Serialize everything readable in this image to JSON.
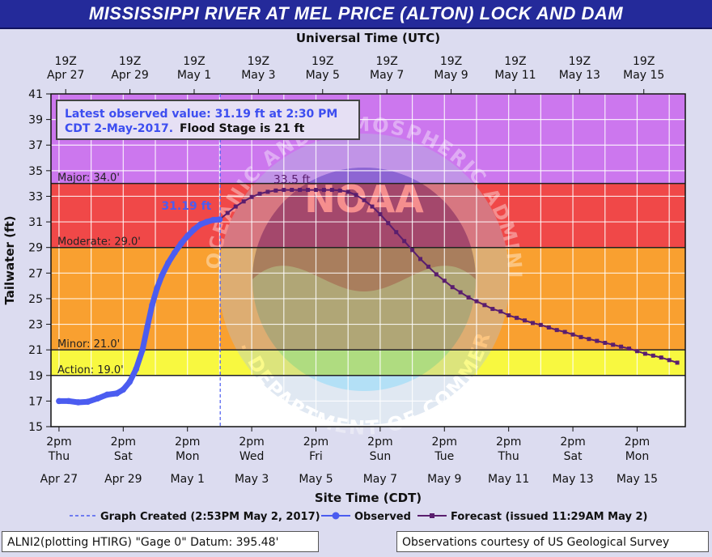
{
  "title": "MISSISSIPPI RIVER AT MEL PRICE (ALTON) LOCK AND DAM",
  "footer": {
    "left": "ALNI2(plotting HTIRG) \"Gage 0\" Datum: 395.48'",
    "right": "Observations courtesy of US Geological Survey"
  },
  "chart_data": {
    "type": "line",
    "top_axis_title": "Universal Time (UTC)",
    "xlabel": "Site Time (CDT)",
    "ylabel": "Tailwater (ft)",
    "ylim": [
      15,
      41
    ],
    "yticks": [
      15,
      17,
      19,
      21,
      23,
      25,
      27,
      29,
      31,
      33,
      35,
      37,
      39,
      41
    ],
    "xlim": [
      "2017-04-27 08:00",
      "2017-05-16 20:00"
    ],
    "grid": true,
    "top_ticks": [
      {
        "line1": "19Z",
        "line2": "Apr 27",
        "day": 0
      },
      {
        "line1": "19Z",
        "line2": "Apr 29",
        "day": 2
      },
      {
        "line1": "19Z",
        "line2": "May  1",
        "day": 4
      },
      {
        "line1": "19Z",
        "line2": "May  3",
        "day": 6
      },
      {
        "line1": "19Z",
        "line2": "May  5",
        "day": 8
      },
      {
        "line1": "19Z",
        "line2": "May  7",
        "day": 10
      },
      {
        "line1": "19Z",
        "line2": "May  9",
        "day": 12
      },
      {
        "line1": "19Z",
        "line2": "May 11",
        "day": 14
      },
      {
        "line1": "19Z",
        "line2": "May 13",
        "day": 16
      },
      {
        "line1": "19Z",
        "line2": "May 15",
        "day": 18
      }
    ],
    "bottom_ticks": [
      {
        "time": "2pm",
        "weekday": "Thu",
        "date": "Apr 27",
        "day": 0
      },
      {
        "time": "2pm",
        "weekday": "Sat",
        "date": "Apr 29",
        "day": 2
      },
      {
        "time": "2pm",
        "weekday": "Mon",
        "date": "May 1",
        "day": 4
      },
      {
        "time": "2pm",
        "weekday": "Wed",
        "date": "May 3",
        "day": 6
      },
      {
        "time": "2pm",
        "weekday": "Fri",
        "date": "May 5",
        "day": 8
      },
      {
        "time": "2pm",
        "weekday": "Sun",
        "date": "May 7",
        "day": 10
      },
      {
        "time": "2pm",
        "weekday": "Tue",
        "date": "May 9",
        "day": 12
      },
      {
        "time": "2pm",
        "weekday": "Thu",
        "date": "May 11",
        "day": 14
      },
      {
        "time": "2pm",
        "weekday": "Sat",
        "date": "May 13",
        "day": 16
      },
      {
        "time": "2pm",
        "weekday": "Mon",
        "date": "May 15",
        "day": 18
      }
    ],
    "bands": [
      {
        "name": "major",
        "from": 34,
        "to": 41,
        "color": "#cc77ee"
      },
      {
        "name": "moderate",
        "from": 29,
        "to": 34,
        "color": "#f04848"
      },
      {
        "name": "minor",
        "from": 21,
        "to": 29,
        "color": "#f9a030"
      },
      {
        "name": "action",
        "from": 19,
        "to": 21,
        "color": "#f8f840"
      },
      {
        "name": "none",
        "from": 15,
        "to": 19,
        "color": "#ffffff"
      }
    ],
    "thresholds": [
      {
        "label": "Major: 34.0'",
        "value": 34
      },
      {
        "label": "Moderate: 29.0'",
        "value": 29
      },
      {
        "label": "Minor: 21.0'",
        "value": 21
      },
      {
        "label": "Action: 19.0'",
        "value": 19
      }
    ],
    "annotation": {
      "line1": "Latest observed value: 31.19 ft at 2:30 PM",
      "line2": "CDT 2-May-2017.",
      "flood_stage": "Flood Stage is 21 ft"
    },
    "observed_label": "31.19 ft",
    "peak_label": "33.5 ft",
    "created_day": 5.02,
    "series": [
      {
        "name": "Observed",
        "color": "#4b5cf0",
        "points": [
          [
            0.0,
            17.0
          ],
          [
            0.3,
            17.0
          ],
          [
            0.6,
            16.9
          ],
          [
            0.9,
            16.95
          ],
          [
            1.2,
            17.2
          ],
          [
            1.5,
            17.5
          ],
          [
            1.8,
            17.6
          ],
          [
            2.0,
            17.9
          ],
          [
            2.2,
            18.5
          ],
          [
            2.4,
            19.5
          ],
          [
            2.6,
            21.0
          ],
          [
            2.75,
            22.8
          ],
          [
            2.9,
            24.5
          ],
          [
            3.05,
            25.8
          ],
          [
            3.2,
            26.8
          ],
          [
            3.4,
            27.8
          ],
          [
            3.6,
            28.6
          ],
          [
            3.8,
            29.3
          ],
          [
            4.0,
            29.9
          ],
          [
            4.2,
            30.4
          ],
          [
            4.4,
            30.8
          ],
          [
            4.6,
            31.0
          ],
          [
            4.8,
            31.15
          ],
          [
            5.0,
            31.19
          ]
        ]
      },
      {
        "name": "Forecast (issued 11:29AM May 2)",
        "color": "#5a1e6e",
        "points": [
          [
            5.0,
            31.19
          ],
          [
            5.25,
            31.7
          ],
          [
            5.5,
            32.2
          ],
          [
            5.75,
            32.6
          ],
          [
            6.0,
            32.95
          ],
          [
            6.25,
            33.2
          ],
          [
            6.5,
            33.35
          ],
          [
            6.75,
            33.45
          ],
          [
            7.0,
            33.5
          ],
          [
            7.25,
            33.5
          ],
          [
            7.5,
            33.5
          ],
          [
            7.75,
            33.5
          ],
          [
            8.0,
            33.5
          ],
          [
            8.25,
            33.5
          ],
          [
            8.5,
            33.5
          ],
          [
            8.75,
            33.45
          ],
          [
            9.0,
            33.35
          ],
          [
            9.25,
            33.1
          ],
          [
            9.5,
            32.7
          ],
          [
            9.75,
            32.2
          ],
          [
            10.0,
            31.6
          ],
          [
            10.25,
            30.9
          ],
          [
            10.5,
            30.2
          ],
          [
            10.75,
            29.5
          ],
          [
            11.0,
            28.8
          ],
          [
            11.25,
            28.1
          ],
          [
            11.5,
            27.5
          ],
          [
            11.75,
            26.9
          ],
          [
            12.0,
            26.4
          ],
          [
            12.25,
            25.9
          ],
          [
            12.5,
            25.5
          ],
          [
            12.75,
            25.1
          ],
          [
            13.0,
            24.8
          ],
          [
            13.25,
            24.5
          ],
          [
            13.5,
            24.2
          ],
          [
            13.75,
            24.0
          ],
          [
            14.0,
            23.7
          ],
          [
            14.25,
            23.5
          ],
          [
            14.5,
            23.3
          ],
          [
            14.75,
            23.1
          ],
          [
            15.0,
            22.95
          ],
          [
            15.25,
            22.75
          ],
          [
            15.5,
            22.55
          ],
          [
            15.75,
            22.4
          ],
          [
            16.0,
            22.2
          ],
          [
            16.25,
            22.0
          ],
          [
            16.5,
            21.85
          ],
          [
            16.75,
            21.7
          ],
          [
            17.0,
            21.55
          ],
          [
            17.25,
            21.4
          ],
          [
            17.5,
            21.25
          ],
          [
            17.75,
            21.1
          ],
          [
            18.0,
            20.9
          ],
          [
            18.25,
            20.7
          ],
          [
            18.5,
            20.55
          ],
          [
            18.75,
            20.4
          ],
          [
            19.0,
            20.2
          ],
          [
            19.25,
            20.0
          ]
        ]
      }
    ],
    "legend": [
      {
        "key": "created",
        "label": "Graph Created (2:53PM May 2, 2017)"
      },
      {
        "key": "observed",
        "label": "Observed"
      },
      {
        "key": "forecast",
        "label": "Forecast (issued 11:29AM May 2)"
      }
    ],
    "watermark": {
      "ring_top": "NATIONAL OCEANIC AND ATMOSPHERIC ADMINISTRATION",
      "ring_bottom": "U.S. DEPARTMENT OF COMMERCE",
      "center": "NOAA"
    }
  }
}
